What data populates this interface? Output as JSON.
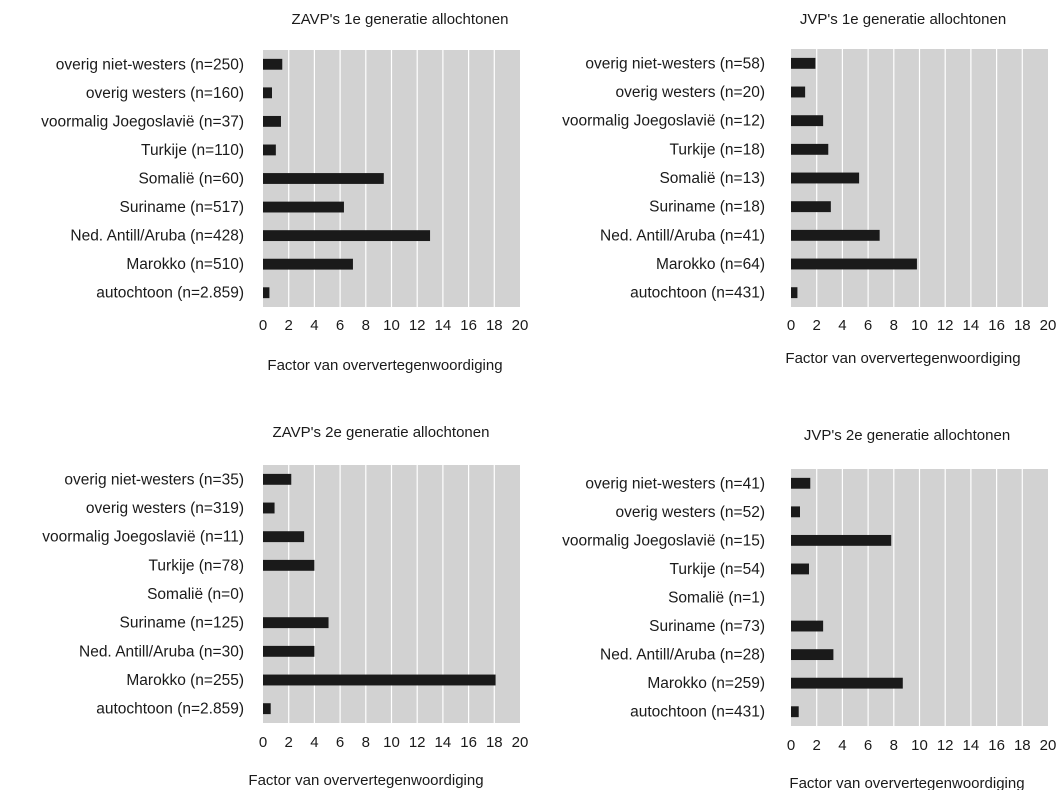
{
  "chart_data": [
    {
      "type": "bar",
      "orientation": "horizontal",
      "title": "ZAVP's 1e generatie allochtonen",
      "xlabel": "Factor van oververtegenwoordiging",
      "xlim": [
        0,
        20
      ],
      "xticks": [
        0,
        2,
        4,
        6,
        8,
        10,
        12,
        14,
        16,
        18,
        20
      ],
      "grid": true,
      "categories": [
        "overig niet-westers (n=250)",
        "overig westers (n=160)",
        "voormalig Joegoslavië (n=37)",
        "Turkije (n=110)",
        "Somalië (n=60)",
        "Suriname (n=517)",
        "Ned. Antill/Aruba (n=428)",
        "Marokko (n=510)",
        "autochtoon (n=2.859)"
      ],
      "values": [
        1.5,
        0.7,
        1.4,
        1.0,
        9.4,
        6.3,
        13.0,
        7.0,
        0.5
      ],
      "colors": {
        "bar": "#1a1a1a",
        "background": "#d2d2d2",
        "grid": "#ffffff"
      }
    },
    {
      "type": "bar",
      "orientation": "horizontal",
      "title": "JVP's 1e generatie allochtonen",
      "xlabel": "Factor van oververtegenwoordiging",
      "xlim": [
        0,
        20
      ],
      "xticks": [
        0,
        2,
        4,
        6,
        8,
        10,
        12,
        14,
        16,
        18,
        20
      ],
      "grid": true,
      "categories": [
        "overig niet-westers (n=58)",
        "overig westers (n=20)",
        "voormalig Joegoslavië (n=12)",
        "Turkije (n=18)",
        "Somalië (n=13)",
        "Suriname (n=18)",
        "Ned. Antill/Aruba (n=41)",
        "Marokko (n=64)",
        "autochtoon (n=431)"
      ],
      "values": [
        1.9,
        1.1,
        2.5,
        2.9,
        5.3,
        3.1,
        6.9,
        9.8,
        0.5
      ],
      "colors": {
        "bar": "#1a1a1a",
        "background": "#d2d2d2",
        "grid": "#ffffff"
      }
    },
    {
      "type": "bar",
      "orientation": "horizontal",
      "title": "ZAVP's 2e generatie allochtonen",
      "xlabel": "Factor van oververtegenwoordiging",
      "xlim": [
        0,
        20
      ],
      "xticks": [
        0,
        2,
        4,
        6,
        8,
        10,
        12,
        14,
        16,
        18,
        20
      ],
      "grid": true,
      "categories": [
        "overig niet-westers (n=35)",
        "overig westers (n=319)",
        "voormalig Joegoslavië (n=11)",
        "Turkije (n=78)",
        "Somalië (n=0)",
        "Suriname (n=125)",
        "Ned. Antill/Aruba (n=30)",
        "Marokko (n=255)",
        "autochtoon (n=2.859)"
      ],
      "values": [
        2.2,
        0.9,
        3.2,
        4.0,
        0,
        5.1,
        4.0,
        18.1,
        0.6
      ],
      "colors": {
        "bar": "#1a1a1a",
        "background": "#d2d2d2",
        "grid": "#ffffff"
      }
    },
    {
      "type": "bar",
      "orientation": "horizontal",
      "title": "JVP's 2e generatie allochtonen",
      "xlabel": "Factor van oververtegenwoordiging",
      "xlim": [
        0,
        20
      ],
      "xticks": [
        0,
        2,
        4,
        6,
        8,
        10,
        12,
        14,
        16,
        18,
        20
      ],
      "grid": true,
      "categories": [
        "overig niet-westers (n=41)",
        "overig westers (n=52)",
        "voormalig Joegoslavië (n=15)",
        "Turkije (n=54)",
        "Somalië (n=1)",
        "Suriname (n=73)",
        "Ned. Antill/Aruba (n=28)",
        "Marokko (n=259)",
        "autochtoon (n=431)"
      ],
      "values": [
        1.5,
        0.7,
        7.8,
        1.4,
        0,
        2.5,
        3.3,
        8.7,
        0.6
      ],
      "colors": {
        "bar": "#1a1a1a",
        "background": "#d2d2d2",
        "grid": "#ffffff"
      }
    }
  ]
}
